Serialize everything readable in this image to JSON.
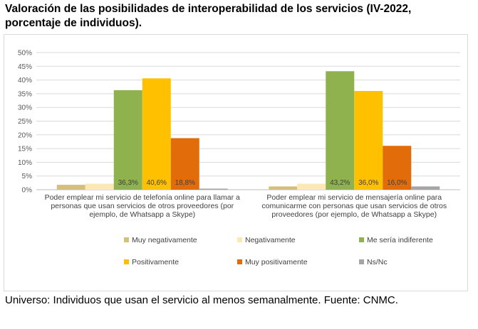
{
  "title": "Valoración de las posibilidades de interoperabilidad de los servicios (IV-2022, porcentaje de individuos).",
  "source": "Universo: Individuos que usan el servicio al menos semanalmente. Fuente: CNMC.",
  "chart_data": {
    "type": "bar",
    "categories": [
      [
        "Poder emplear mi servicio de telefonía online para llamar a",
        "personas que usan servicios de otros proveedores (por",
        "ejemplo, de Whatsapp a Skype)"
      ],
      [
        "Poder emplear mi servicio de mensajería online para",
        "comunicarme con personas que usan servicios de otros",
        "proveedores (por ejemplo, de Whatsapp a Skype)"
      ]
    ],
    "series": [
      {
        "name": "Muy negativamente",
        "color": "#d4c07a",
        "values": [
          1.8,
          1.2
        ],
        "labels": [
          "",
          ""
        ]
      },
      {
        "name": "Negativamente",
        "color": "#fbe8b2",
        "values": [
          2.2,
          2.2
        ],
        "labels": [
          "",
          ""
        ]
      },
      {
        "name": "Me sería indiferente",
        "color": "#8fb24e",
        "values": [
          36.3,
          43.2
        ],
        "labels": [
          "36,3%",
          "43,2%"
        ]
      },
      {
        "name": "Positivamente",
        "color": "#ffc000",
        "values": [
          40.6,
          36.0
        ],
        "labels": [
          "40,6%",
          "36,0%"
        ]
      },
      {
        "name": "Muy positivamente",
        "color": "#e26b0a",
        "values": [
          18.8,
          16.0
        ],
        "labels": [
          "18,8%",
          "16,0%"
        ]
      },
      {
        "name": "Ns/Nc",
        "color": "#a5a5a5",
        "values": [
          0.4,
          1.2
        ],
        "labels": [
          "",
          ""
        ]
      }
    ],
    "yticks": [
      "0%",
      "5%",
      "10%",
      "15%",
      "20%",
      "25%",
      "30%",
      "35%",
      "40%",
      "45%",
      "50%"
    ],
    "ylim": [
      0,
      50
    ],
    "grid": true,
    "legend_position": "bottom"
  }
}
